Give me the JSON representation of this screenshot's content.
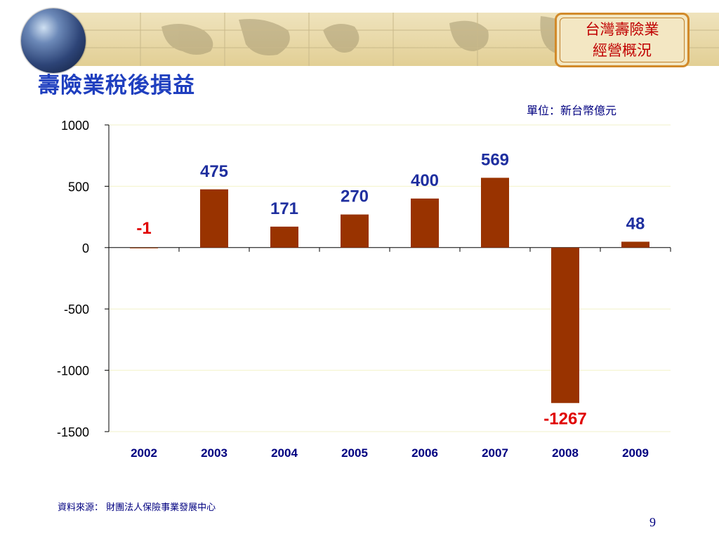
{
  "header": {
    "badge_line1": "台灣壽險業",
    "badge_line2": "經營概況"
  },
  "title": "壽險業稅後損益",
  "unit": "單位：新台幣億元",
  "footer": {
    "source": "資料來源： 財團法人保險事業發展中心",
    "page_number": "9"
  },
  "colors": {
    "bar": "#993300",
    "positive_label": "#1f2f9f",
    "negative_label": "#e00000",
    "title": "#1f3fbf"
  },
  "chart_data": {
    "type": "bar",
    "categories": [
      "2002",
      "2003",
      "2004",
      "2005",
      "2006",
      "2007",
      "2008",
      "2009"
    ],
    "values": [
      -1,
      475,
      171,
      270,
      400,
      569,
      -1267,
      48
    ],
    "data_labels": [
      "-1",
      "475",
      "171",
      "270",
      "400",
      "569",
      "-1267",
      "48"
    ],
    "title": "壽險業稅後損益",
    "unit": "單位：新台幣億元",
    "ylim": [
      -1500,
      1000
    ],
    "yticks": [
      1000,
      500,
      0,
      -500,
      -1000,
      -1500
    ],
    "ytick_labels": [
      "1000",
      "500",
      "0",
      "-500",
      "-1000",
      "-1500"
    ],
    "grid": true,
    "legend": false
  }
}
